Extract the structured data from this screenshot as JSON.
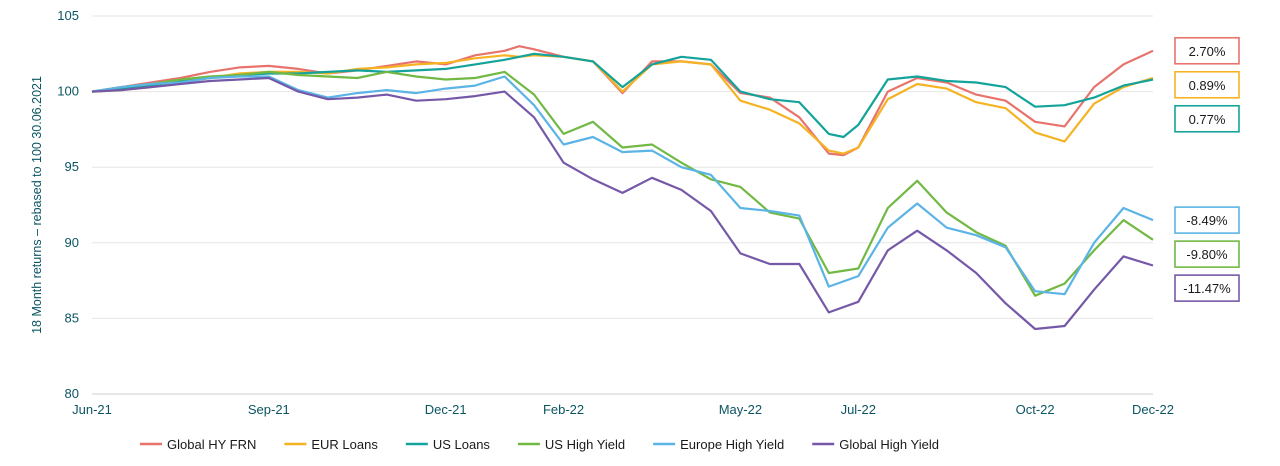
{
  "chart_data": {
    "type": "line",
    "title": "",
    "xlabel": "",
    "ylabel": "18 Month returns – rebased to 100 30.06.2021",
    "ylim": [
      80,
      105
    ],
    "yticks": [
      80,
      85,
      90,
      95,
      100,
      105
    ],
    "xlim": [
      0,
      18
    ],
    "xticks": [
      {
        "label": "Jun-21",
        "x": 0
      },
      {
        "label": "Sep-21",
        "x": 3
      },
      {
        "label": "Dec-21",
        "x": 6
      },
      {
        "label": "Feb-22",
        "x": 8
      },
      {
        "label": "May-22",
        "x": 11
      },
      {
        "label": "Jul-22",
        "x": 13
      },
      {
        "label": "Oct-22",
        "x": 16
      },
      {
        "label": "Dec-22",
        "x": 18
      }
    ],
    "grid": true,
    "legend_position": "bottom",
    "series": [
      {
        "name": "Global HY FRN",
        "color": "#e8736c",
        "end_label": "2.70%",
        "x": [
          0,
          0.5,
          1,
          1.5,
          2,
          2.5,
          3,
          3.5,
          4,
          4.5,
          5,
          5.5,
          6,
          6.5,
          7,
          7.25,
          7.5,
          8,
          8.5,
          9,
          9.5,
          10,
          10.5,
          11,
          11.5,
          12,
          12.5,
          12.75,
          13,
          13.5,
          14,
          14.5,
          15,
          15.5,
          16,
          16.5,
          17,
          17.5,
          18
        ],
        "y": [
          100,
          100.3,
          100.6,
          100.9,
          101.3,
          101.6,
          101.7,
          101.5,
          101.2,
          101.4,
          101.7,
          102,
          101.8,
          102.4,
          102.7,
          103,
          102.8,
          102.3,
          102,
          99.9,
          102,
          102,
          101.8,
          99.9,
          99.6,
          98.3,
          95.9,
          95.8,
          96.3,
          100,
          100.9,
          100.6,
          99.8,
          99.4,
          98,
          97.7,
          100.3,
          101.8,
          102.7
        ]
      },
      {
        "name": "EUR Loans",
        "color": "#f5b324",
        "end_label": "0.89%",
        "x": [
          0,
          0.5,
          1,
          1.5,
          2,
          2.5,
          3,
          3.5,
          4,
          4.5,
          5,
          5.5,
          6,
          6.5,
          7,
          7.25,
          7.5,
          8,
          8.5,
          9,
          9.5,
          10,
          10.5,
          11,
          11.5,
          12,
          12.5,
          12.75,
          13,
          13.5,
          14,
          14.5,
          15,
          15.5,
          16,
          16.5,
          17,
          17.5,
          18
        ],
        "y": [
          100,
          100.1,
          100.3,
          100.6,
          100.9,
          101.2,
          101.3,
          101.3,
          101.2,
          101.5,
          101.6,
          101.8,
          101.9,
          102.2,
          102.4,
          102.3,
          102.4,
          102.3,
          102,
          100,
          101.8,
          102,
          101.8,
          99.4,
          98.8,
          97.9,
          96.1,
          95.9,
          96.3,
          99.5,
          100.5,
          100.2,
          99.3,
          98.9,
          97.3,
          96.7,
          99.2,
          100.3,
          100.9
        ]
      },
      {
        "name": "US Loans",
        "color": "#14a39a",
        "end_label": "0.77%",
        "x": [
          0,
          0.5,
          1,
          1.5,
          2,
          2.5,
          3,
          3.5,
          4,
          4.5,
          5,
          5.5,
          6,
          6.5,
          7,
          7.25,
          7.5,
          8,
          8.5,
          9,
          9.5,
          10,
          10.5,
          11,
          11.5,
          12,
          12.5,
          12.75,
          13,
          13.5,
          14,
          14.5,
          15,
          15.5,
          16,
          16.5,
          17,
          17.5,
          18
        ],
        "y": [
          100,
          100.2,
          100.4,
          100.7,
          100.9,
          101.1,
          101.2,
          101.2,
          101.3,
          101.4,
          101.3,
          101.4,
          101.5,
          101.8,
          102.1,
          102.3,
          102.5,
          102.3,
          102,
          100.3,
          101.8,
          102.3,
          102.1,
          100,
          99.5,
          99.3,
          97.2,
          97,
          97.8,
          100.8,
          101,
          100.7,
          100.6,
          100.3,
          99,
          99.1,
          99.6,
          100.4,
          100.8
        ]
      },
      {
        "name": "US High Yield",
        "color": "#72b944",
        "end_label": "-9.80%",
        "x": [
          0,
          0.5,
          1,
          1.5,
          2,
          2.5,
          3,
          3.5,
          4,
          4.5,
          5,
          5.5,
          6,
          6.5,
          7,
          7.5,
          8,
          8.5,
          9,
          9.5,
          10,
          10.5,
          11,
          11.5,
          12,
          12.5,
          13,
          13.5,
          14,
          14.5,
          15,
          15.5,
          16,
          16.5,
          17,
          17.5,
          18
        ],
        "y": [
          100,
          100.3,
          100.5,
          100.8,
          101,
          101.1,
          101.3,
          101.1,
          101,
          100.9,
          101.3,
          101,
          100.8,
          100.9,
          101.3,
          99.8,
          97.2,
          98,
          96.3,
          96.5,
          95.3,
          94.2,
          93.7,
          92,
          91.6,
          88,
          88.3,
          92.3,
          94.1,
          92,
          90.7,
          89.8,
          86.5,
          87.3,
          89.5,
          91.5,
          90.2
        ]
      },
      {
        "name": "Europe High Yield",
        "color": "#5bb4e5",
        "end_label": "-8.49%",
        "x": [
          0,
          0.5,
          1,
          1.5,
          2,
          2.5,
          3,
          3.5,
          4,
          4.5,
          5,
          5.5,
          6,
          6.5,
          7,
          7.5,
          8,
          8.5,
          9,
          9.5,
          10,
          10.5,
          11,
          11.5,
          12,
          12.5,
          13,
          13.5,
          14,
          14.5,
          15,
          15.5,
          16,
          16.5,
          17,
          17.5,
          18
        ],
        "y": [
          100,
          100.3,
          100.5,
          100.6,
          100.9,
          101,
          101,
          100.1,
          99.6,
          99.9,
          100.1,
          99.9,
          100.2,
          100.4,
          101,
          99.1,
          96.5,
          97,
          96,
          96.1,
          95,
          94.5,
          92.3,
          92.1,
          91.8,
          87.1,
          87.8,
          91,
          92.6,
          91,
          90.5,
          89.7,
          86.8,
          86.6,
          90,
          92.3,
          91.5
        ]
      },
      {
        "name": "Global High Yield",
        "color": "#7559a8",
        "end_label": "-11.47%",
        "x": [
          0,
          0.5,
          1,
          1.5,
          2,
          2.5,
          3,
          3.5,
          4,
          4.5,
          5,
          5.5,
          6,
          6.5,
          7,
          7.5,
          8,
          8.5,
          9,
          9.5,
          10,
          10.5,
          11,
          11.5,
          12,
          12.5,
          13,
          13.5,
          14,
          14.5,
          15,
          15.5,
          16,
          16.5,
          17,
          17.5,
          18
        ],
        "y": [
          100,
          100.1,
          100.3,
          100.5,
          100.7,
          100.8,
          100.9,
          100,
          99.5,
          99.6,
          99.8,
          99.4,
          99.5,
          99.7,
          100,
          98.3,
          95.3,
          94.2,
          93.3,
          94.3,
          93.5,
          92.1,
          89.3,
          88.6,
          88.6,
          85.4,
          86.1,
          89.5,
          90.8,
          89.5,
          88,
          86,
          84.3,
          84.5,
          86.9,
          89.1,
          88.5
        ]
      }
    ]
  }
}
